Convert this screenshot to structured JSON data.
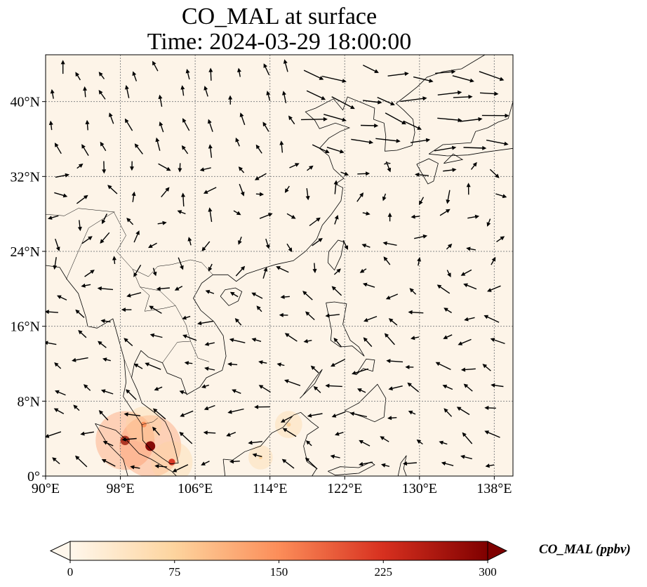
{
  "title_line1": "CO_MAL at surface",
  "title_line2": "Time: 2024-03-29 18:00:00",
  "map": {
    "lon_range": [
      90,
      140
    ],
    "lat_range": [
      0,
      45
    ],
    "lon_ticks": [
      90,
      98,
      106,
      114,
      122,
      130,
      138
    ],
    "lon_tick_labels": [
      "90°E",
      "98°E",
      "106°E",
      "114°E",
      "122°E",
      "130°E",
      "138°E"
    ],
    "lat_ticks": [
      0,
      8,
      16,
      24,
      32,
      40
    ],
    "lat_tick_labels": [
      "0°",
      "8°N",
      "16°N",
      "24°N",
      "32°N",
      "40°N"
    ],
    "gridlines": true,
    "background_color": "#fdf4e8",
    "coastline_color": "#000000",
    "vector_color": "#000000"
  },
  "colorbar": {
    "label": "CO_MAL (ppbv)",
    "min": 0,
    "max": 300,
    "ticks": [
      0,
      75,
      150,
      225,
      300
    ],
    "tick_labels": [
      "0",
      "75",
      "150",
      "225",
      "300"
    ],
    "extend": "both",
    "colormap": "OrRd",
    "stops": [
      "#fff7ec",
      "#fdd49e",
      "#fc8d59",
      "#d7301f",
      "#7f0000"
    ]
  },
  "hotspots": [
    {
      "lon": 98.5,
      "lat": 3.8,
      "value": 280
    },
    {
      "lon": 101.2,
      "lat": 3.2,
      "value": 300
    },
    {
      "lon": 103.5,
      "lat": 1.5,
      "value": 160
    },
    {
      "lon": 100.5,
      "lat": 5.5,
      "value": 120
    },
    {
      "lon": 116.0,
      "lat": 5.5,
      "value": 60
    },
    {
      "lon": 113.0,
      "lat": 2.0,
      "value": 40
    }
  ]
}
